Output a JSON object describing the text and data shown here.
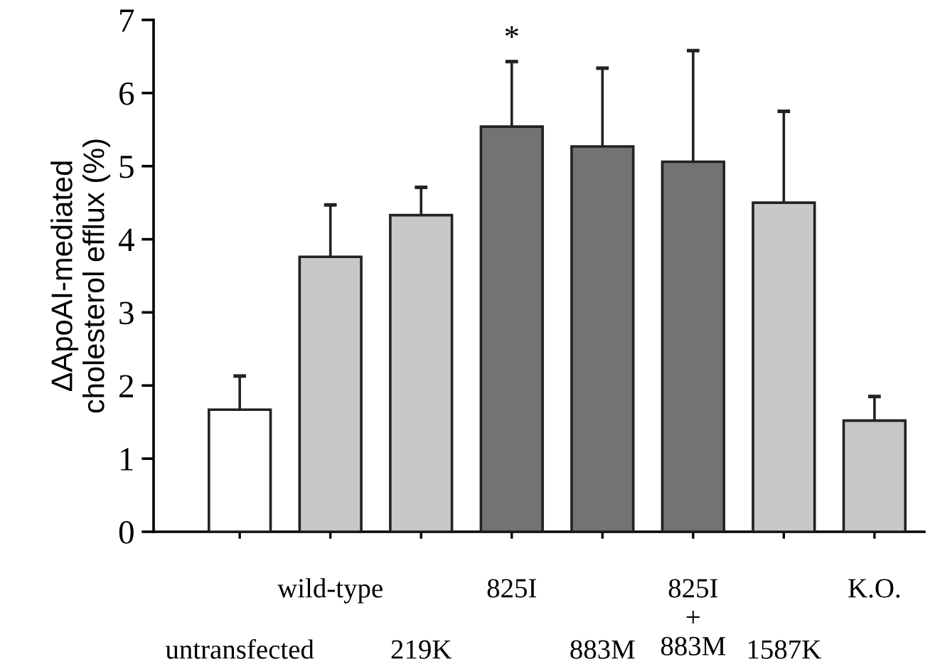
{
  "chart_data": {
    "type": "bar",
    "categories": [
      "untransfected",
      "wild-type",
      "219K",
      "825I",
      "883M",
      "825I\n+\n883M",
      "1587K",
      "K.O."
    ],
    "values": [
      1.67,
      3.76,
      4.33,
      5.54,
      5.27,
      5.06,
      4.5,
      1.52
    ],
    "colors": [
      "#ffffff",
      "#c8c8c8",
      "#c8c8c8",
      "#737373",
      "#737373",
      "#737373",
      "#c8c8c8",
      "#c8c8c8"
    ],
    "errors": [
      [
        1.67,
        2.13
      ],
      [
        3.76,
        4.47
      ],
      [
        4.33,
        4.71
      ],
      [
        5.54,
        6.43
      ],
      [
        5.27,
        6.34
      ],
      [
        5.06,
        6.58
      ],
      [
        4.5,
        5.75
      ],
      [
        1.52,
        1.85
      ]
    ],
    "ylabel": "ΔApoAI-mediated\ncholesterol efflux (%)",
    "ylim": [
      0,
      7
    ],
    "yticks": [
      0,
      1,
      2,
      3,
      4,
      5,
      6,
      7
    ],
    "annotations": [
      {
        "text": "*",
        "x": "825I",
        "y": 6.43
      }
    ],
    "grid": false,
    "legend": false
  }
}
